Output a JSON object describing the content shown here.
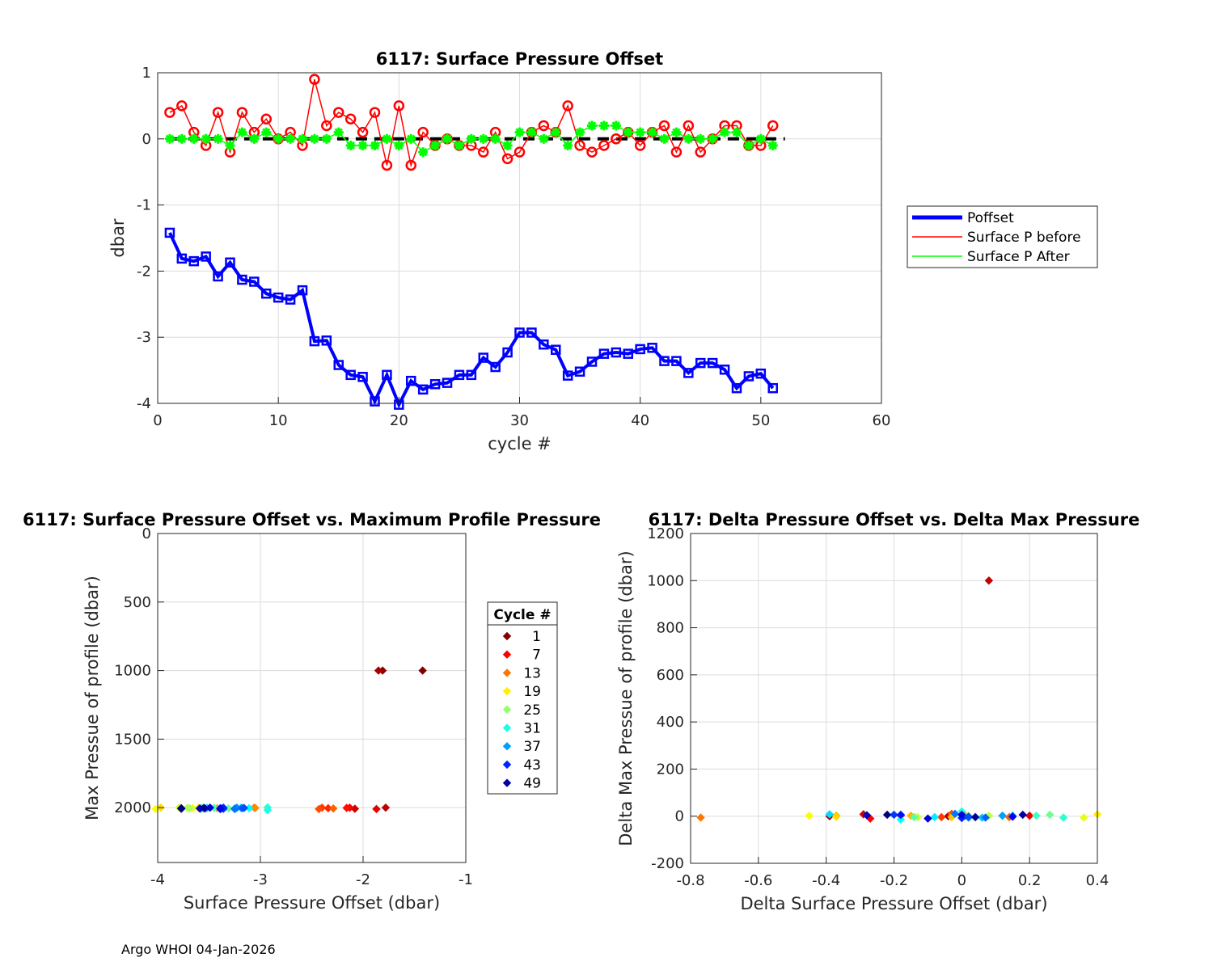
{
  "footer": "Argo WHOI 04-Jan-2026",
  "chart_data": [
    {
      "type": "line",
      "title": "6117: Surface Pressure Offset",
      "xlabel": "cycle #",
      "ylabel": "dbar",
      "xlim": [
        0,
        60
      ],
      "ylim": [
        -4,
        1
      ],
      "xticks": [
        0,
        10,
        20,
        30,
        40,
        50,
        60
      ],
      "yticks": [
        -4,
        -3,
        -2,
        -1,
        0,
        1
      ],
      "grid": true,
      "legend_position": "outside-right",
      "zero_line": {
        "x": [
          1,
          52
        ],
        "y": 0,
        "style": "dashed",
        "color": "#000000"
      },
      "x": [
        1,
        2,
        3,
        4,
        5,
        6,
        7,
        8,
        9,
        10,
        11,
        12,
        13,
        14,
        15,
        16,
        17,
        18,
        19,
        20,
        21,
        22,
        23,
        24,
        25,
        26,
        27,
        28,
        29,
        30,
        31,
        32,
        33,
        34,
        35,
        36,
        37,
        38,
        39,
        40,
        41,
        42,
        43,
        44,
        45,
        46,
        47,
        48,
        49,
        50,
        51
      ],
      "series": [
        {
          "name": "Poffset",
          "color": "#0000ff",
          "marker": "square",
          "values": [
            -1.42,
            -1.81,
            -1.85,
            -1.78,
            -2.08,
            -1.87,
            -2.13,
            -2.16,
            -2.34,
            -2.4,
            -2.43,
            -2.29,
            -3.06,
            -3.05,
            -3.42,
            -3.57,
            -3.6,
            -3.97,
            -3.57,
            -4.02,
            -3.66,
            -3.79,
            -3.71,
            -3.69,
            -3.57,
            -3.57,
            -3.31,
            -3.45,
            -3.23,
            -2.93,
            -2.93,
            -3.11,
            -3.19,
            -3.58,
            -3.52,
            -3.37,
            -3.25,
            -3.23,
            -3.25,
            -3.18,
            -3.16,
            -3.36,
            -3.36,
            -3.54,
            -3.39,
            -3.39,
            -3.49,
            -3.77,
            -3.59,
            -3.55,
            -3.77
          ]
        },
        {
          "name": "Surface P before",
          "color": "#ff0000",
          "marker": "circle",
          "values": [
            0.4,
            0.5,
            0.1,
            -0.1,
            0.4,
            -0.2,
            0.4,
            0.1,
            0.3,
            0.0,
            0.1,
            -0.1,
            0.9,
            0.2,
            0.4,
            0.3,
            0.1,
            0.4,
            -0.4,
            0.5,
            -0.4,
            0.1,
            -0.1,
            0.0,
            -0.1,
            -0.1,
            -0.2,
            0.1,
            -0.3,
            -0.2,
            0.1,
            0.2,
            0.1,
            0.5,
            -0.1,
            -0.2,
            -0.1,
            0.0,
            0.1,
            -0.1,
            0.1,
            0.2,
            -0.2,
            0.2,
            -0.2,
            0.0,
            0.2,
            0.2,
            -0.1,
            -0.1,
            0.2
          ]
        },
        {
          "name": "Surface P After",
          "color": "#00ff00",
          "marker": "asterisk",
          "values": [
            0.0,
            0.0,
            0.0,
            0.0,
            0.0,
            -0.1,
            0.1,
            0.0,
            0.1,
            0.0,
            0.0,
            0.0,
            0.0,
            0.0,
            0.1,
            -0.1,
            -0.1,
            -0.1,
            0.0,
            -0.1,
            0.0,
            -0.2,
            -0.1,
            0.0,
            -0.1,
            0.0,
            0.0,
            0.0,
            -0.1,
            0.1,
            0.1,
            0.0,
            0.1,
            -0.1,
            0.1,
            0.2,
            0.2,
            0.2,
            0.1,
            0.1,
            0.1,
            0.0,
            0.1,
            0.0,
            0.0,
            0.0,
            0.1,
            0.1,
            -0.1,
            0.0,
            -0.1
          ]
        }
      ]
    },
    {
      "type": "scatter",
      "title": "6117: Surface Pressure Offset vs. Maximum Profile Pressure",
      "xlabel": "Surface Pressure Offset (dbar)",
      "ylabel": "Max Pressue of profile (dbar)",
      "xlim": [
        -4,
        -1
      ],
      "ylim": [
        2400,
        0
      ],
      "y_reversed": true,
      "xticks": [
        -4,
        -3,
        -2,
        -1
      ],
      "yticks": [
        0,
        500,
        1000,
        1500,
        2000
      ],
      "grid": true,
      "legend_title": "Cycle #",
      "legend_entries": [
        "1",
        "7",
        "13",
        "19",
        "25",
        "31",
        "37",
        "43",
        "49"
      ],
      "legend_position": "outside-right",
      "colormap": "jet",
      "points": [
        {
          "cycle": 1,
          "x": -1.42,
          "y": 1000
        },
        {
          "cycle": 2,
          "x": -1.81,
          "y": 1000
        },
        {
          "cycle": 3,
          "x": -1.85,
          "y": 1000
        },
        {
          "cycle": 4,
          "x": -1.78,
          "y": 2000
        },
        {
          "cycle": 5,
          "x": -2.08,
          "y": 2008
        },
        {
          "cycle": 6,
          "x": -1.87,
          "y": 2010
        },
        {
          "cycle": 7,
          "x": -2.13,
          "y": 2000
        },
        {
          "cycle": 8,
          "x": -2.16,
          "y": 2002
        },
        {
          "cycle": 9,
          "x": -2.34,
          "y": 2004
        },
        {
          "cycle": 10,
          "x": -2.4,
          "y": 2000
        },
        {
          "cycle": 11,
          "x": -2.43,
          "y": 2010
        },
        {
          "cycle": 12,
          "x": -2.29,
          "y": 2006
        },
        {
          "cycle": 13,
          "x": -3.06,
          "y": 2000
        },
        {
          "cycle": 14,
          "x": -3.05,
          "y": 2002
        },
        {
          "cycle": 15,
          "x": -3.42,
          "y": 2004
        },
        {
          "cycle": 16,
          "x": -3.57,
          "y": 2006
        },
        {
          "cycle": 17,
          "x": -3.6,
          "y": 2002
        },
        {
          "cycle": 18,
          "x": -3.97,
          "y": 2000
        },
        {
          "cycle": 19,
          "x": -3.57,
          "y": 2008
        },
        {
          "cycle": 20,
          "x": -4.02,
          "y": 2010
        },
        {
          "cycle": 21,
          "x": -3.66,
          "y": 2004
        },
        {
          "cycle": 22,
          "x": -3.79,
          "y": 2000
        },
        {
          "cycle": 23,
          "x": -3.71,
          "y": 2002
        },
        {
          "cycle": 24,
          "x": -3.69,
          "y": 2004
        },
        {
          "cycle": 25,
          "x": -3.57,
          "y": 2006
        },
        {
          "cycle": 26,
          "x": -3.57,
          "y": 2000
        },
        {
          "cycle": 27,
          "x": -3.31,
          "y": 2006
        },
        {
          "cycle": 28,
          "x": -3.45,
          "y": 2002
        },
        {
          "cycle": 29,
          "x": -3.23,
          "y": 2004
        },
        {
          "cycle": 30,
          "x": -2.93,
          "y": 1998
        },
        {
          "cycle": 31,
          "x": -2.93,
          "y": 2018
        },
        {
          "cycle": 32,
          "x": -3.11,
          "y": 2004
        },
        {
          "cycle": 33,
          "x": -3.19,
          "y": 2000
        },
        {
          "cycle": 34,
          "x": -3.58,
          "y": 2008
        },
        {
          "cycle": 35,
          "x": -3.52,
          "y": 2002
        },
        {
          "cycle": 36,
          "x": -3.37,
          "y": 2004
        },
        {
          "cycle": 37,
          "x": -3.25,
          "y": 2006
        },
        {
          "cycle": 38,
          "x": -3.23,
          "y": 2000
        },
        {
          "cycle": 39,
          "x": -3.25,
          "y": 2010
        },
        {
          "cycle": 40,
          "x": -3.18,
          "y": 2004
        },
        {
          "cycle": 41,
          "x": -3.16,
          "y": 2002
        },
        {
          "cycle": 42,
          "x": -3.36,
          "y": 2008
        },
        {
          "cycle": 43,
          "x": -3.36,
          "y": 2000
        },
        {
          "cycle": 44,
          "x": -3.54,
          "y": 2006
        },
        {
          "cycle": 45,
          "x": -3.39,
          "y": 2004
        },
        {
          "cycle": 46,
          "x": -3.39,
          "y": 2010
        },
        {
          "cycle": 47,
          "x": -3.49,
          "y": 2000
        },
        {
          "cycle": 48,
          "x": -3.77,
          "y": 2004
        },
        {
          "cycle": 49,
          "x": -3.59,
          "y": 2006
        },
        {
          "cycle": 50,
          "x": -3.55,
          "y": 2002
        },
        {
          "cycle": 51,
          "x": -3.77,
          "y": 2008
        }
      ]
    },
    {
      "type": "scatter",
      "title": "6117: Delta Pressure Offset vs. Delta Max Pressure",
      "xlabel": "Delta Surface Pressure Offset (dbar)",
      "ylabel": "Delta Max Pressue of profile (dbar)",
      "xlim": [
        -0.8,
        0.4
      ],
      "ylim": [
        -200,
        1200
      ],
      "xticks": [
        -0.8,
        -0.6,
        -0.4,
        -0.2,
        0,
        0.2,
        0.4
      ],
      "yticks": [
        -200,
        0,
        200,
        400,
        600,
        800,
        1000,
        1200
      ],
      "grid": true,
      "colormap": "jet",
      "points": [
        {
          "cycle": 2,
          "x": -0.39,
          "y": 0
        },
        {
          "cycle": 3,
          "x": -0.04,
          "y": 0
        },
        {
          "cycle": 4,
          "x": 0.08,
          "y": 1000
        },
        {
          "cycle": 5,
          "x": -0.29,
          "y": 8
        },
        {
          "cycle": 6,
          "x": 0.2,
          "y": 2
        },
        {
          "cycle": 7,
          "x": -0.27,
          "y": -10
        },
        {
          "cycle": 8,
          "x": -0.03,
          "y": 2
        },
        {
          "cycle": 9,
          "x": -0.18,
          "y": 2
        },
        {
          "cycle": 10,
          "x": -0.06,
          "y": -4
        },
        {
          "cycle": 11,
          "x": -0.03,
          "y": 10
        },
        {
          "cycle": 12,
          "x": 0.14,
          "y": -4
        },
        {
          "cycle": 13,
          "x": -0.77,
          "y": -6
        },
        {
          "cycle": 14,
          "x": 0.01,
          "y": 2
        },
        {
          "cycle": 15,
          "x": -0.37,
          "y": 2
        },
        {
          "cycle": 16,
          "x": -0.15,
          "y": 2
        },
        {
          "cycle": 17,
          "x": -0.03,
          "y": -4
        },
        {
          "cycle": 18,
          "x": -0.37,
          "y": -2
        },
        {
          "cycle": 19,
          "x": 0.4,
          "y": 8
        },
        {
          "cycle": 20,
          "x": -0.45,
          "y": 2
        },
        {
          "cycle": 21,
          "x": 0.36,
          "y": -6
        },
        {
          "cycle": 22,
          "x": -0.13,
          "y": -4
        },
        {
          "cycle": 23,
          "x": 0.08,
          "y": 2
        },
        {
          "cycle": 24,
          "x": 0.02,
          "y": 2
        },
        {
          "cycle": 25,
          "x": 0.12,
          "y": 2
        },
        {
          "cycle": 26,
          "x": 0.0,
          "y": -6
        },
        {
          "cycle": 27,
          "x": 0.26,
          "y": 6
        },
        {
          "cycle": 28,
          "x": -0.14,
          "y": -4
        },
        {
          "cycle": 29,
          "x": 0.22,
          "y": 2
        },
        {
          "cycle": 30,
          "x": 0.3,
          "y": -6
        },
        {
          "cycle": 31,
          "x": 0.0,
          "y": 20
        },
        {
          "cycle": 32,
          "x": -0.18,
          "y": -14
        },
        {
          "cycle": 33,
          "x": -0.08,
          "y": -4
        },
        {
          "cycle": 34,
          "x": -0.39,
          "y": 8
        },
        {
          "cycle": 35,
          "x": 0.06,
          "y": -6
        },
        {
          "cycle": 36,
          "x": 0.15,
          "y": 2
        },
        {
          "cycle": 37,
          "x": 0.12,
          "y": 2
        },
        {
          "cycle": 38,
          "x": 0.02,
          "y": -6
        },
        {
          "cycle": 39,
          "x": -0.02,
          "y": 10
        },
        {
          "cycle": 40,
          "x": 0.07,
          "y": -6
        },
        {
          "cycle": 41,
          "x": 0.02,
          "y": -2
        },
        {
          "cycle": 42,
          "x": -0.2,
          "y": 6
        },
        {
          "cycle": 43,
          "x": 0.0,
          "y": -8
        },
        {
          "cycle": 44,
          "x": -0.18,
          "y": 6
        },
        {
          "cycle": 45,
          "x": 0.15,
          "y": -2
        },
        {
          "cycle": 46,
          "x": 0.0,
          "y": 6
        },
        {
          "cycle": 47,
          "x": -0.1,
          "y": -10
        },
        {
          "cycle": 48,
          "x": -0.28,
          "y": 4
        },
        {
          "cycle": 49,
          "x": 0.18,
          "y": 6
        },
        {
          "cycle": 50,
          "x": 0.04,
          "y": -4
        },
        {
          "cycle": 51,
          "x": -0.22,
          "y": 6
        }
      ]
    }
  ]
}
